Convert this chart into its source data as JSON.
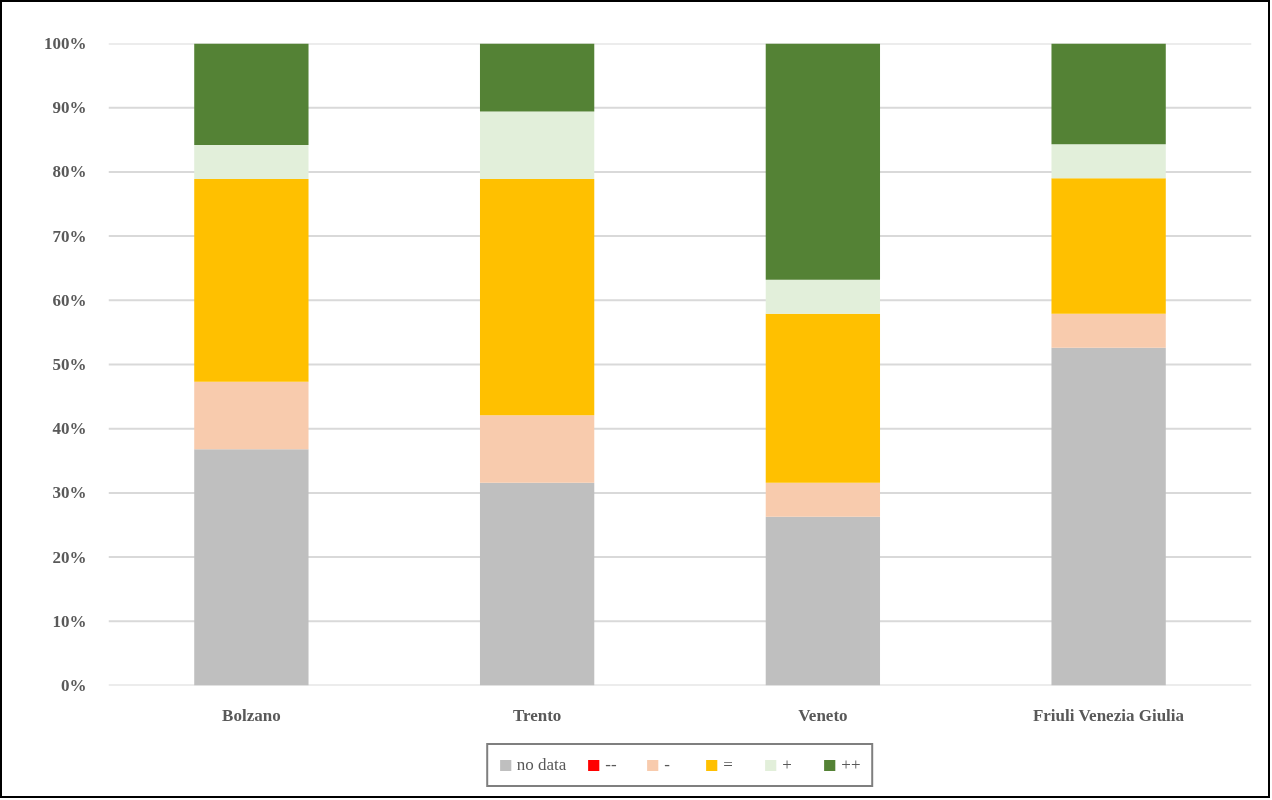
{
  "chart_data": {
    "type": "bar",
    "stacked": true,
    "categories": [
      "Bolzano",
      "Trento",
      "Veneto",
      "Friuli Venezia Giulia"
    ],
    "series": [
      {
        "name": "no data",
        "color": "#bfbfbf",
        "values": [
          36.8,
          31.6,
          26.3,
          52.6
        ]
      },
      {
        "name": "--",
        "color": "#ff0000",
        "values": [
          0,
          0,
          0,
          0
        ]
      },
      {
        "name": "-",
        "color": "#f8cbad",
        "values": [
          10.5,
          10.5,
          5.3,
          5.3
        ]
      },
      {
        "name": "=",
        "color": "#ffc000",
        "values": [
          31.6,
          36.8,
          26.3,
          21.1
        ]
      },
      {
        "name": "+",
        "color": "#e2efda",
        "values": [
          5.3,
          10.5,
          5.3,
          5.3
        ]
      },
      {
        "name": "++",
        "color": "#548235",
        "values": [
          15.8,
          10.6,
          36.8,
          15.7
        ]
      }
    ],
    "ylim": [
      0,
      100
    ],
    "yticks": [
      {
        "value": 0,
        "label": "0%"
      },
      {
        "value": 10,
        "label": "10%"
      },
      {
        "value": 20,
        "label": "20%"
      },
      {
        "value": 30,
        "label": "30%"
      },
      {
        "value": 40,
        "label": "40%"
      },
      {
        "value": 50,
        "label": "50%"
      },
      {
        "value": 60,
        "label": "60%"
      },
      {
        "value": 70,
        "label": "70%"
      },
      {
        "value": 80,
        "label": "80%"
      },
      {
        "value": 90,
        "label": "90%"
      },
      {
        "value": 100,
        "label": "100%"
      }
    ],
    "grid": "y",
    "legend": "bottom"
  }
}
